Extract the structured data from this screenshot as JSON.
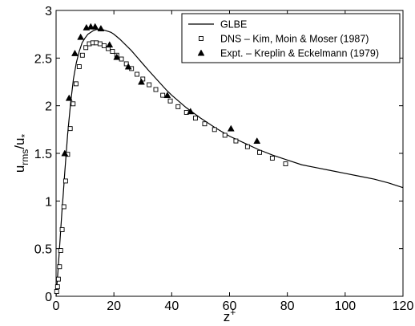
{
  "chart_data": {
    "type": "scatter",
    "title": "",
    "xlabel": "z",
    "xlabel_sup": "+",
    "ylabel": "u",
    "ylabel_sub": "rms",
    "ylabel_sep": "/u",
    "ylabel_sub2": "*",
    "xlim": [
      0,
      120
    ],
    "ylim": [
      0,
      3
    ],
    "xticks": [
      0,
      20,
      40,
      60,
      80,
      100,
      120
    ],
    "yticks": [
      0,
      0.5,
      1,
      1.5,
      2,
      2.5,
      3
    ],
    "xtick_labels": [
      "0",
      "20",
      "40",
      "60",
      "80",
      "100",
      "120"
    ],
    "ytick_labels": [
      "0",
      "0.5",
      "1",
      "1.5",
      "2",
      "2.5",
      "3"
    ],
    "grid": false,
    "legend_position": "top-right",
    "series": [
      {
        "name": "GLBE",
        "kind": "line",
        "color": "#000000",
        "x": [
          0,
          0.5,
          1,
          1.5,
          2,
          2.5,
          3,
          4,
          5,
          6,
          7,
          8,
          9,
          10,
          11,
          12,
          13,
          14,
          15,
          16,
          17,
          18,
          19,
          20,
          22,
          24,
          26,
          28,
          30,
          32,
          35,
          38,
          40,
          45,
          50,
          55,
          60,
          65,
          70,
          75,
          80,
          85,
          90,
          95,
          100,
          105,
          110,
          115,
          120
        ],
        "y": [
          0,
          0.2,
          0.42,
          0.65,
          0.88,
          1.08,
          1.3,
          1.7,
          2.02,
          2.28,
          2.45,
          2.57,
          2.66,
          2.71,
          2.75,
          2.77,
          2.79,
          2.8,
          2.8,
          2.8,
          2.79,
          2.78,
          2.77,
          2.75,
          2.7,
          2.64,
          2.58,
          2.51,
          2.44,
          2.37,
          2.27,
          2.17,
          2.11,
          1.98,
          1.87,
          1.77,
          1.68,
          1.61,
          1.54,
          1.48,
          1.43,
          1.38,
          1.35,
          1.32,
          1.29,
          1.26,
          1.23,
          1.19,
          1.14
        ]
      },
      {
        "name": "DNS – Kim, Moin & Moser (1987)",
        "kind": "scatter",
        "marker": "square",
        "color": "#000000",
        "x": [
          0.2,
          0.5,
          0.8,
          1.2,
          1.6,
          2.1,
          2.7,
          3.3,
          4.0,
          4.9,
          5.9,
          6.9,
          8.0,
          9.1,
          10.3,
          11.5,
          12.7,
          13.9,
          15.2,
          16.6,
          18.0,
          19.5,
          21.0,
          22.6,
          24.3,
          26.1,
          28.0,
          30.0,
          32.2,
          34.5,
          36.9,
          39.5,
          42.2,
          45.1,
          48.2,
          51.4,
          54.8,
          58.4,
          62.2,
          66.2,
          70.4,
          74.8,
          79.4
        ],
        "y": [
          0.05,
          0.1,
          0.18,
          0.31,
          0.48,
          0.7,
          0.94,
          1.21,
          1.49,
          1.76,
          2.02,
          2.23,
          2.41,
          2.53,
          2.61,
          2.65,
          2.66,
          2.66,
          2.65,
          2.63,
          2.6,
          2.57,
          2.53,
          2.49,
          2.44,
          2.39,
          2.33,
          2.28,
          2.22,
          2.17,
          2.11,
          2.05,
          1.99,
          1.93,
          1.87,
          1.81,
          1.75,
          1.69,
          1.63,
          1.57,
          1.51,
          1.45,
          1.39
        ]
      },
      {
        "name": "Expt. – Kreplin & Eckelmann (1979)",
        "kind": "scatter",
        "marker": "triangle",
        "color": "#000000",
        "x": [
          3.0,
          4.5,
          6.5,
          8.5,
          10.5,
          12.0,
          13.5,
          15.5,
          18.5,
          21.0,
          25.0,
          29.5,
          38.5,
          46.5,
          60.5,
          69.5
        ],
        "y": [
          1.5,
          2.08,
          2.55,
          2.72,
          2.82,
          2.83,
          2.83,
          2.81,
          2.64,
          2.51,
          2.41,
          2.25,
          2.11,
          1.94,
          1.76,
          1.63
        ]
      }
    ]
  }
}
